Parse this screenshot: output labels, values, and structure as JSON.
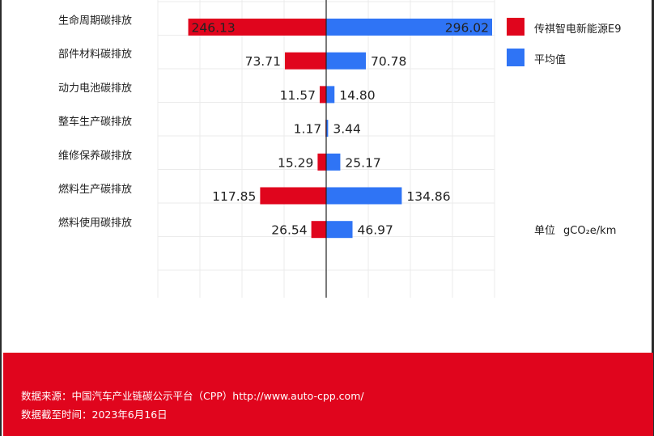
{
  "chart_data": {
    "type": "bar",
    "orientation": "horizontal-diverging",
    "categories": [
      "生命周期碳排放",
      "部件材料碳排放",
      "动力电池碳排放",
      "整车生产碳排放",
      "维修保养碳排放",
      "燃料生产碳排放",
      "燃料使用碳排放"
    ],
    "series": [
      {
        "name": "传祺智电新能源E9",
        "values": [
          246.13,
          73.71,
          11.57,
          1.17,
          15.29,
          117.85,
          26.54
        ],
        "color": "#e0051d",
        "direction": "left"
      },
      {
        "name": "平均值",
        "values": [
          296.02,
          70.78,
          14.8,
          3.44,
          25.17,
          134.86,
          46.97
        ],
        "color": "#2f74f5",
        "direction": "right"
      }
    ],
    "value_labels_left": [
      "246.13",
      "73.71",
      "11.57",
      "1.17",
      "15.29",
      "117.85",
      "26.54"
    ],
    "value_labels_right": [
      "296.02",
      "70.78",
      "14.80",
      "3.44",
      "25.17",
      "134.86",
      "46.97"
    ],
    "grid": true,
    "legend_position": "right"
  },
  "unit": {
    "label": "单位",
    "value": "gCO₂e/km"
  },
  "footer": {
    "source": "数据来源：中国汽车产业链碳公示平台（CPP）http://www.auto-cpp.com/",
    "date": "数据截至时间：2023年6月16日"
  }
}
